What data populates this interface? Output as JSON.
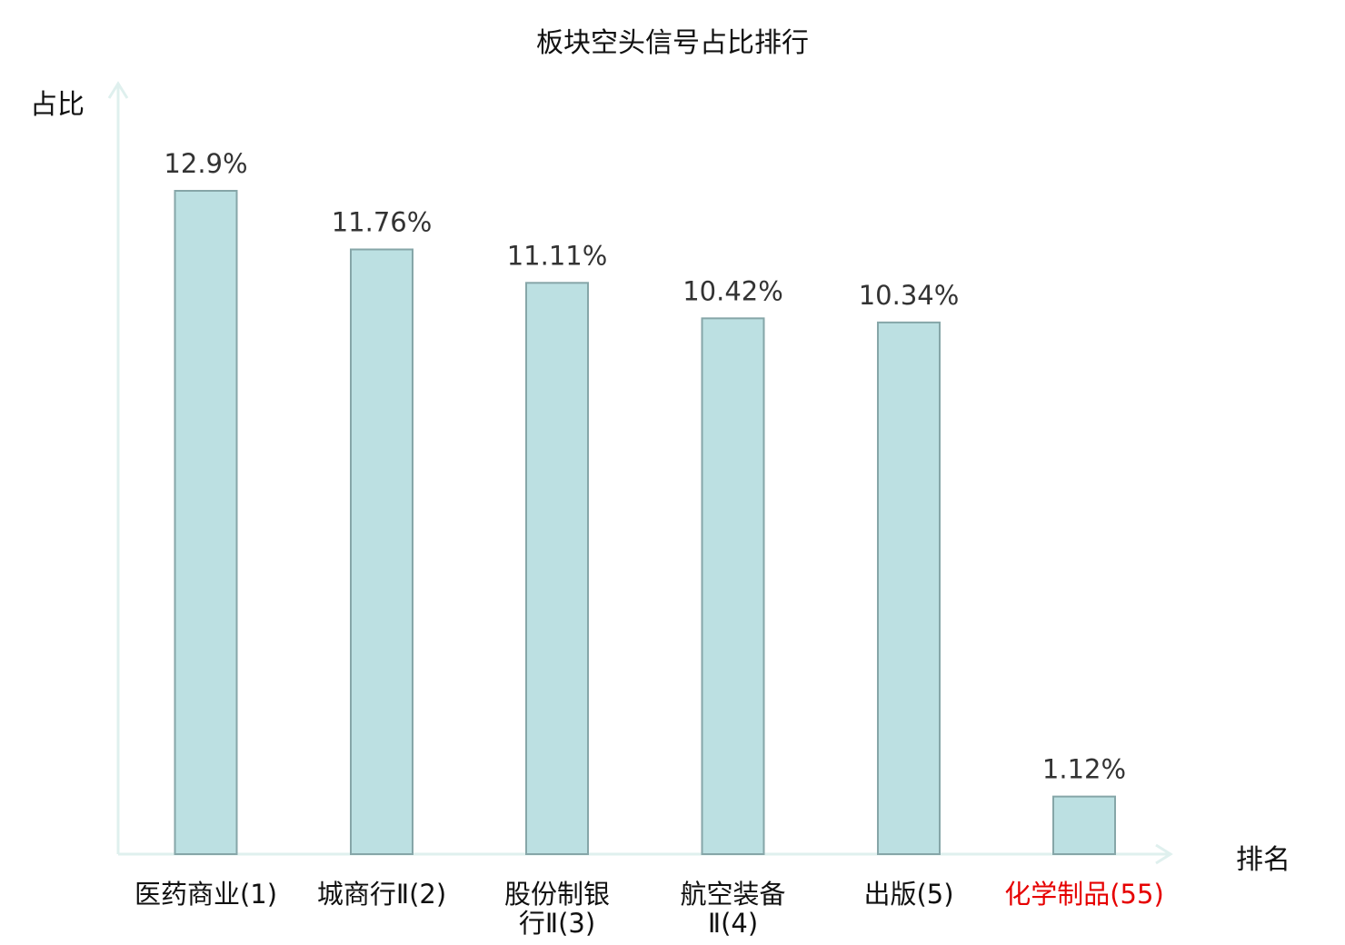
{
  "chart_data": {
    "type": "bar",
    "title": "板块空头信号占比排行",
    "ylabel": "占比",
    "xlabel": "排名",
    "categories": [
      [
        "医药商业(1)"
      ],
      [
        "城商行Ⅱ(2)"
      ],
      [
        "股份制银",
        "行Ⅱ(3)"
      ],
      [
        "航空装备",
        "Ⅱ(4)"
      ],
      [
        "出版(5)"
      ],
      [
        "化学制品(55)"
      ]
    ],
    "values": [
      12.9,
      11.76,
      11.11,
      10.42,
      10.34,
      1.12
    ],
    "value_labels": [
      "12.9%",
      "11.76%",
      "11.11%",
      "10.42%",
      "10.34%",
      "1.12%"
    ],
    "highlight_index": 5,
    "ylim": [
      0,
      14
    ],
    "grid": false,
    "colors": {
      "bar_fill": "#bce0e2",
      "bar_stroke": "#86a6a8",
      "axis": "#dff0ee",
      "text": "#111111",
      "value_label": "#333333",
      "highlight": "#e60000"
    }
  }
}
